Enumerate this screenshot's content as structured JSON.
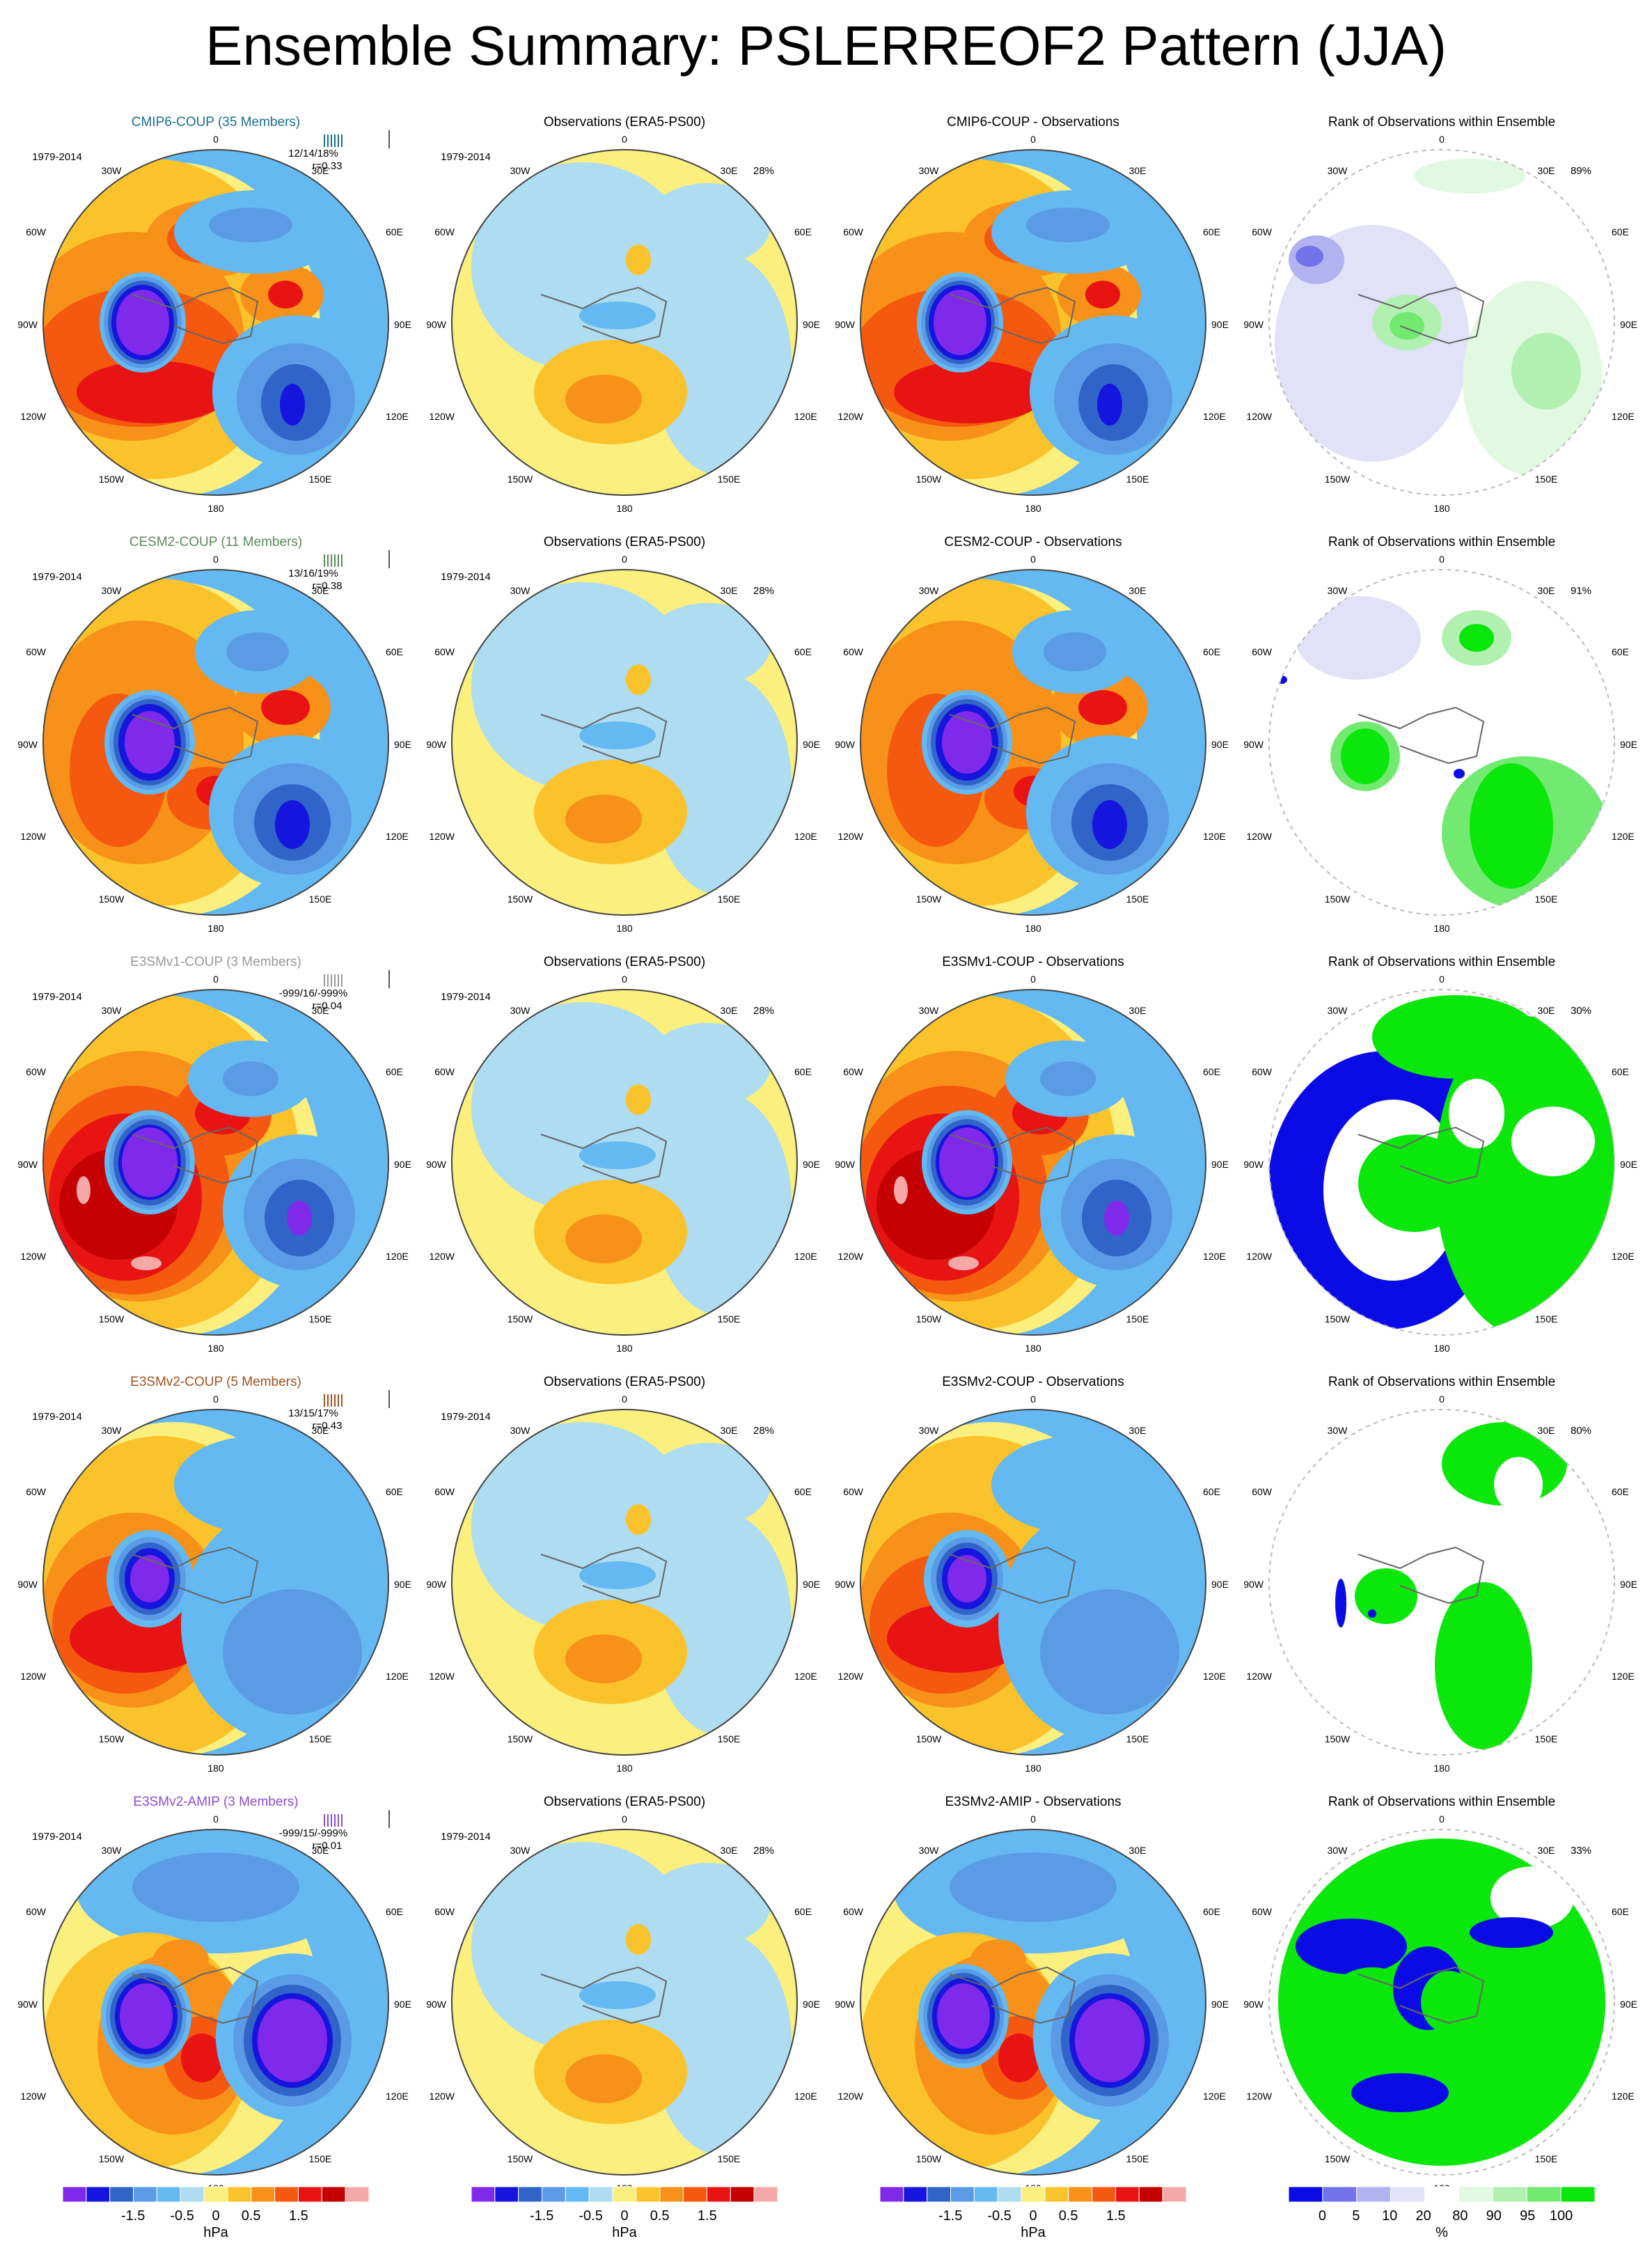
{
  "title": "Ensemble Summary: PSLERREOF2 Pattern (JJA)",
  "colors": {
    "model_field": [
      "#7F2AEB",
      "#1515DE",
      "#3064C8",
      "#5B9BE6",
      "#64B9F2",
      "#AEDCF0",
      "#FBEF7E",
      "#FBC32B",
      "#F79119",
      "#F5580F",
      "#E81414",
      "#C40000",
      "#F4A8A8"
    ],
    "rank_field": [
      "#0B0BE6",
      "#7272EA",
      "#B2B2F0",
      "#E1E1F8",
      "#FFFFFF",
      "#E1F8E1",
      "#B2F0B2",
      "#72EA72",
      "#0BE60B"
    ],
    "row_title_colors": [
      "#1A6E8E",
      "#5B8A5B",
      "#9A9A9A",
      "#A0521E",
      "#8A4ED8"
    ]
  },
  "chart_data": [
    {
      "type": "heatmap",
      "row": 0,
      "title": "CMIP6-COUP (35 Members)",
      "period": "1979-2014",
      "stat": "12/14/18%",
      "corr": "r=0.33"
    },
    {
      "type": "heatmap",
      "row": 0,
      "title": "Observations (ERA5-PS00)",
      "period": "1979-2014",
      "pct": "28%"
    },
    {
      "type": "heatmap",
      "row": 0,
      "title": "CMIP6-COUP - Observations"
    },
    {
      "type": "heatmap",
      "row": 0,
      "title": "Rank of Observations within Ensemble",
      "pct": "89%"
    },
    {
      "type": "heatmap",
      "row": 1,
      "title": "CESM2-COUP (11 Members)",
      "period": "1979-2014",
      "stat": "13/16/19%",
      "corr": "r=0.38"
    },
    {
      "type": "heatmap",
      "row": 1,
      "title": "Observations (ERA5-PS00)",
      "period": "1979-2014",
      "pct": "28%"
    },
    {
      "type": "heatmap",
      "row": 1,
      "title": "CESM2-COUP - Observations"
    },
    {
      "type": "heatmap",
      "row": 1,
      "title": "Rank of Observations within Ensemble",
      "pct": "91%"
    },
    {
      "type": "heatmap",
      "row": 2,
      "title": "E3SMv1-COUP (3 Members)",
      "period": "1979-2014",
      "stat": "-999/16/-999%",
      "corr": "r=0.04"
    },
    {
      "type": "heatmap",
      "row": 2,
      "title": "Observations (ERA5-PS00)",
      "period": "1979-2014",
      "pct": "28%"
    },
    {
      "type": "heatmap",
      "row": 2,
      "title": "E3SMv1-COUP - Observations"
    },
    {
      "type": "heatmap",
      "row": 2,
      "title": "Rank of Observations within Ensemble",
      "pct": "30%"
    },
    {
      "type": "heatmap",
      "row": 3,
      "title": "E3SMv2-COUP (5 Members)",
      "period": "1979-2014",
      "stat": "13/15/17%",
      "corr": "r=0.43"
    },
    {
      "type": "heatmap",
      "row": 3,
      "title": "Observations (ERA5-PS00)",
      "period": "1979-2014",
      "pct": "28%"
    },
    {
      "type": "heatmap",
      "row": 3,
      "title": "E3SMv2-COUP - Observations"
    },
    {
      "type": "heatmap",
      "row": 3,
      "title": "Rank of Observations within Ensemble",
      "pct": "80%"
    },
    {
      "type": "heatmap",
      "row": 4,
      "title": "E3SMv2-AMIP (3 Members)",
      "period": "1979-2014",
      "stat": "-999/15/-999%",
      "corr": "r=0.01"
    },
    {
      "type": "heatmap",
      "row": 4,
      "title": "Observations (ERA5-PS00)",
      "period": "1979-2014",
      "pct": "28%"
    },
    {
      "type": "heatmap",
      "row": 4,
      "title": "E3SMv2-AMIP - Observations"
    },
    {
      "type": "heatmap",
      "row": 4,
      "title": "Rank of Observations within Ensemble",
      "pct": "33%"
    }
  ],
  "map_labels": {
    "top": "0",
    "bottom": "180",
    "upper_left": "30W",
    "upper_right": "30E",
    "left_upper": "60W",
    "right_upper": "60E",
    "left_mid": "90W",
    "right_mid": "90E",
    "left_lower": "120W",
    "right_lower": "120E",
    "lower_left": "150W",
    "lower_right": "150E"
  },
  "colorbar_model": {
    "ticks": [
      "-1.5",
      "-0.5",
      "0",
      "0.5",
      "1.5"
    ],
    "unit": "hPa"
  },
  "colorbar_rank": {
    "ticks": [
      "0",
      "5",
      "10",
      "20",
      "80",
      "90",
      "95",
      "100"
    ],
    "unit": "%"
  }
}
